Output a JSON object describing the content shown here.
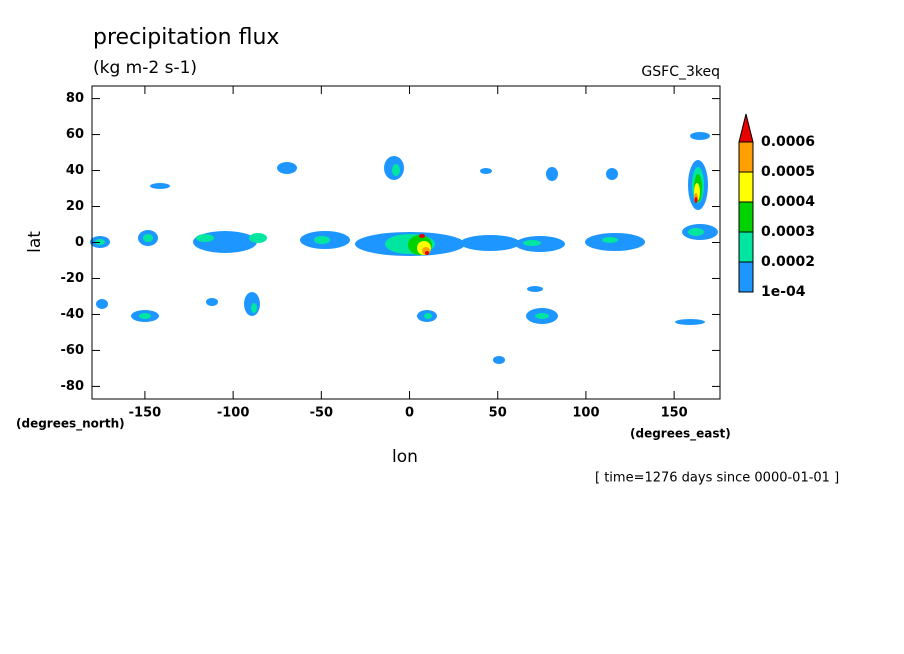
{
  "chart_data": {
    "type": "contour",
    "title": "precipitation flux",
    "subtitle": "(kg m-2 s-1)",
    "dataset": "GSFC_3keq",
    "x_label": "lon",
    "y_label": "lat",
    "x_units": "(degrees_east)",
    "y_units": "(degrees_north)",
    "footnote": "[ time=1276 days since 0000-01-01 ]",
    "xlim": [
      -180,
      176
    ],
    "ylim": [
      -87,
      87
    ],
    "xticks": [
      -150,
      -100,
      -50,
      0,
      50,
      100,
      150
    ],
    "yticks": [
      -80,
      -60,
      -40,
      -20,
      0,
      20,
      40,
      60,
      80
    ],
    "levels": [
      {
        "value": 0.0001,
        "label": "1e-04"
      },
      0.0002,
      0.0003,
      0.0004,
      0.0005,
      0.0006
    ],
    "colors": [
      "#1e96ff",
      "#00e6a0",
      "#00d200",
      "#ffff00",
      "#ffa000",
      "#e60000"
    ]
  }
}
